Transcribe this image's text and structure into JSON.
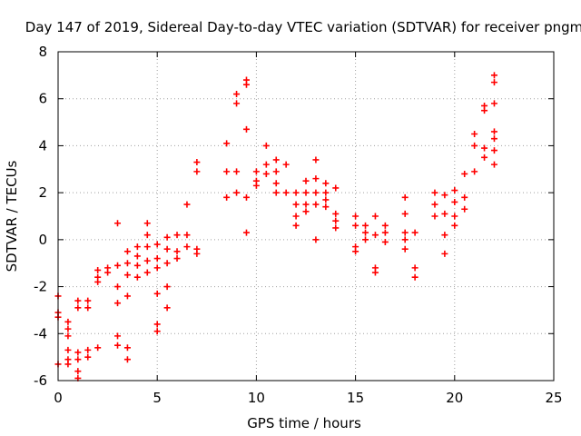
{
  "chart_data": {
    "type": "scatter",
    "title": "Day 147 of 2019, Sidereal Day-to-day VTEC variation (SDTVAR) for receiver pngm",
    "xlabel": "GPS time / hours",
    "ylabel": "SDTVAR / TECUs",
    "xlim": [
      0,
      25
    ],
    "ylim": [
      -6,
      8
    ],
    "xticks": [
      "0",
      "5",
      "10",
      "15",
      "20",
      "25"
    ],
    "yticks": [
      "-6",
      "-4",
      "-2",
      "0",
      "2",
      "4",
      "6",
      "8"
    ],
    "grid": true,
    "marker": "plus",
    "color": "#ff0000",
    "series": [
      {
        "name": "SDTVAR",
        "points": [
          [
            0.0,
            -3.1
          ],
          [
            0.0,
            -3.3
          ],
          [
            0.0,
            -2.4
          ],
          [
            0.0,
            -5.3
          ],
          [
            0.5,
            -3.5
          ],
          [
            0.5,
            -3.8
          ],
          [
            0.5,
            -4.1
          ],
          [
            0.5,
            -4.7
          ],
          [
            0.5,
            -5.1
          ],
          [
            0.5,
            -5.3
          ],
          [
            1.0,
            -2.6
          ],
          [
            1.0,
            -2.9
          ],
          [
            1.0,
            -4.8
          ],
          [
            1.0,
            -5.1
          ],
          [
            1.0,
            -5.6
          ],
          [
            1.0,
            -5.9
          ],
          [
            1.5,
            -2.6
          ],
          [
            1.5,
            -2.9
          ],
          [
            1.5,
            -4.7
          ],
          [
            1.5,
            -5.0
          ],
          [
            2.0,
            -1.3
          ],
          [
            2.0,
            -1.6
          ],
          [
            2.0,
            -1.8
          ],
          [
            2.0,
            -4.6
          ],
          [
            2.5,
            -1.2
          ],
          [
            2.5,
            -1.4
          ],
          [
            3.0,
            0.7
          ],
          [
            3.0,
            -1.1
          ],
          [
            3.0,
            -2.0
          ],
          [
            3.0,
            -2.7
          ],
          [
            3.0,
            -4.1
          ],
          [
            3.0,
            -4.5
          ],
          [
            3.5,
            -0.5
          ],
          [
            3.5,
            -1.0
          ],
          [
            3.5,
            -1.5
          ],
          [
            3.5,
            -2.4
          ],
          [
            3.5,
            -4.6
          ],
          [
            3.5,
            -5.1
          ],
          [
            4.0,
            -0.3
          ],
          [
            4.0,
            -0.7
          ],
          [
            4.0,
            -1.1
          ],
          [
            4.0,
            -1.6
          ],
          [
            4.5,
            0.7
          ],
          [
            4.5,
            0.2
          ],
          [
            4.5,
            -0.3
          ],
          [
            4.5,
            -0.9
          ],
          [
            4.5,
            -1.4
          ],
          [
            5.0,
            -0.2
          ],
          [
            5.0,
            -0.8
          ],
          [
            5.0,
            -1.2
          ],
          [
            5.0,
            -2.3
          ],
          [
            5.0,
            -3.6
          ],
          [
            5.0,
            -3.9
          ],
          [
            5.5,
            0.1
          ],
          [
            5.5,
            -0.4
          ],
          [
            5.5,
            -1.0
          ],
          [
            5.5,
            -2.0
          ],
          [
            5.5,
            -2.9
          ],
          [
            6.0,
            0.2
          ],
          [
            6.0,
            -0.5
          ],
          [
            6.0,
            -0.8
          ],
          [
            6.5,
            1.5
          ],
          [
            6.5,
            0.2
          ],
          [
            6.5,
            -0.3
          ],
          [
            7.0,
            3.3
          ],
          [
            7.0,
            2.9
          ],
          [
            7.0,
            -0.4
          ],
          [
            7.0,
            -0.6
          ],
          [
            8.5,
            4.1
          ],
          [
            8.5,
            1.8
          ],
          [
            8.5,
            2.9
          ],
          [
            9.0,
            6.2
          ],
          [
            9.0,
            5.8
          ],
          [
            9.0,
            2.9
          ],
          [
            9.0,
            2.0
          ],
          [
            9.5,
            6.8
          ],
          [
            9.5,
            6.6
          ],
          [
            9.5,
            4.7
          ],
          [
            9.5,
            1.8
          ],
          [
            9.5,
            0.3
          ],
          [
            10.0,
            2.9
          ],
          [
            10.0,
            2.5
          ],
          [
            10.0,
            2.3
          ],
          [
            10.5,
            4.0
          ],
          [
            10.5,
            3.2
          ],
          [
            10.5,
            2.8
          ],
          [
            11.0,
            3.4
          ],
          [
            11.0,
            2.9
          ],
          [
            11.0,
            2.4
          ],
          [
            11.0,
            2.0
          ],
          [
            11.5,
            3.2
          ],
          [
            11.5,
            2.0
          ],
          [
            12.0,
            2.0
          ],
          [
            12.0,
            1.5
          ],
          [
            12.0,
            1.0
          ],
          [
            12.0,
            0.6
          ],
          [
            12.5,
            2.5
          ],
          [
            12.5,
            2.0
          ],
          [
            12.5,
            1.5
          ],
          [
            12.5,
            1.2
          ],
          [
            13.0,
            3.4
          ],
          [
            13.0,
            2.6
          ],
          [
            13.0,
            2.0
          ],
          [
            13.0,
            1.5
          ],
          [
            13.0,
            0.0
          ],
          [
            13.5,
            2.4
          ],
          [
            13.5,
            2.0
          ],
          [
            13.5,
            1.7
          ],
          [
            13.5,
            1.4
          ],
          [
            14.0,
            2.2
          ],
          [
            14.0,
            1.1
          ],
          [
            14.0,
            0.8
          ],
          [
            14.0,
            0.5
          ],
          [
            15.0,
            1.0
          ],
          [
            15.0,
            0.6
          ],
          [
            15.0,
            -0.3
          ],
          [
            15.0,
            -0.5
          ],
          [
            15.5,
            0.6
          ],
          [
            15.5,
            0.3
          ],
          [
            15.5,
            0.0
          ],
          [
            16.0,
            1.0
          ],
          [
            16.0,
            0.2
          ],
          [
            16.0,
            -1.2
          ],
          [
            16.0,
            -1.4
          ],
          [
            16.5,
            0.6
          ],
          [
            16.5,
            0.3
          ],
          [
            16.5,
            -0.1
          ],
          [
            17.5,
            1.8
          ],
          [
            17.5,
            1.1
          ],
          [
            17.5,
            0.3
          ],
          [
            17.5,
            0.0
          ],
          [
            17.5,
            -0.4
          ],
          [
            18.0,
            0.3
          ],
          [
            18.0,
            -1.2
          ],
          [
            18.0,
            -1.6
          ],
          [
            19.0,
            2.0
          ],
          [
            19.0,
            1.5
          ],
          [
            19.0,
            1.0
          ],
          [
            19.5,
            1.9
          ],
          [
            19.5,
            1.1
          ],
          [
            19.5,
            0.2
          ],
          [
            19.5,
            -0.6
          ],
          [
            20.0,
            2.1
          ],
          [
            20.0,
            1.6
          ],
          [
            20.0,
            1.0
          ],
          [
            20.0,
            0.6
          ],
          [
            20.5,
            2.8
          ],
          [
            20.5,
            1.8
          ],
          [
            20.5,
            1.3
          ],
          [
            21.0,
            4.5
          ],
          [
            21.0,
            4.0
          ],
          [
            21.0,
            2.9
          ],
          [
            21.5,
            5.7
          ],
          [
            21.5,
            5.5
          ],
          [
            21.5,
            3.9
          ],
          [
            21.5,
            3.5
          ],
          [
            22.0,
            7.0
          ],
          [
            22.0,
            6.7
          ],
          [
            22.0,
            5.8
          ],
          [
            22.0,
            4.6
          ],
          [
            22.0,
            4.3
          ],
          [
            22.0,
            3.8
          ],
          [
            22.0,
            3.2
          ]
        ]
      }
    ]
  }
}
